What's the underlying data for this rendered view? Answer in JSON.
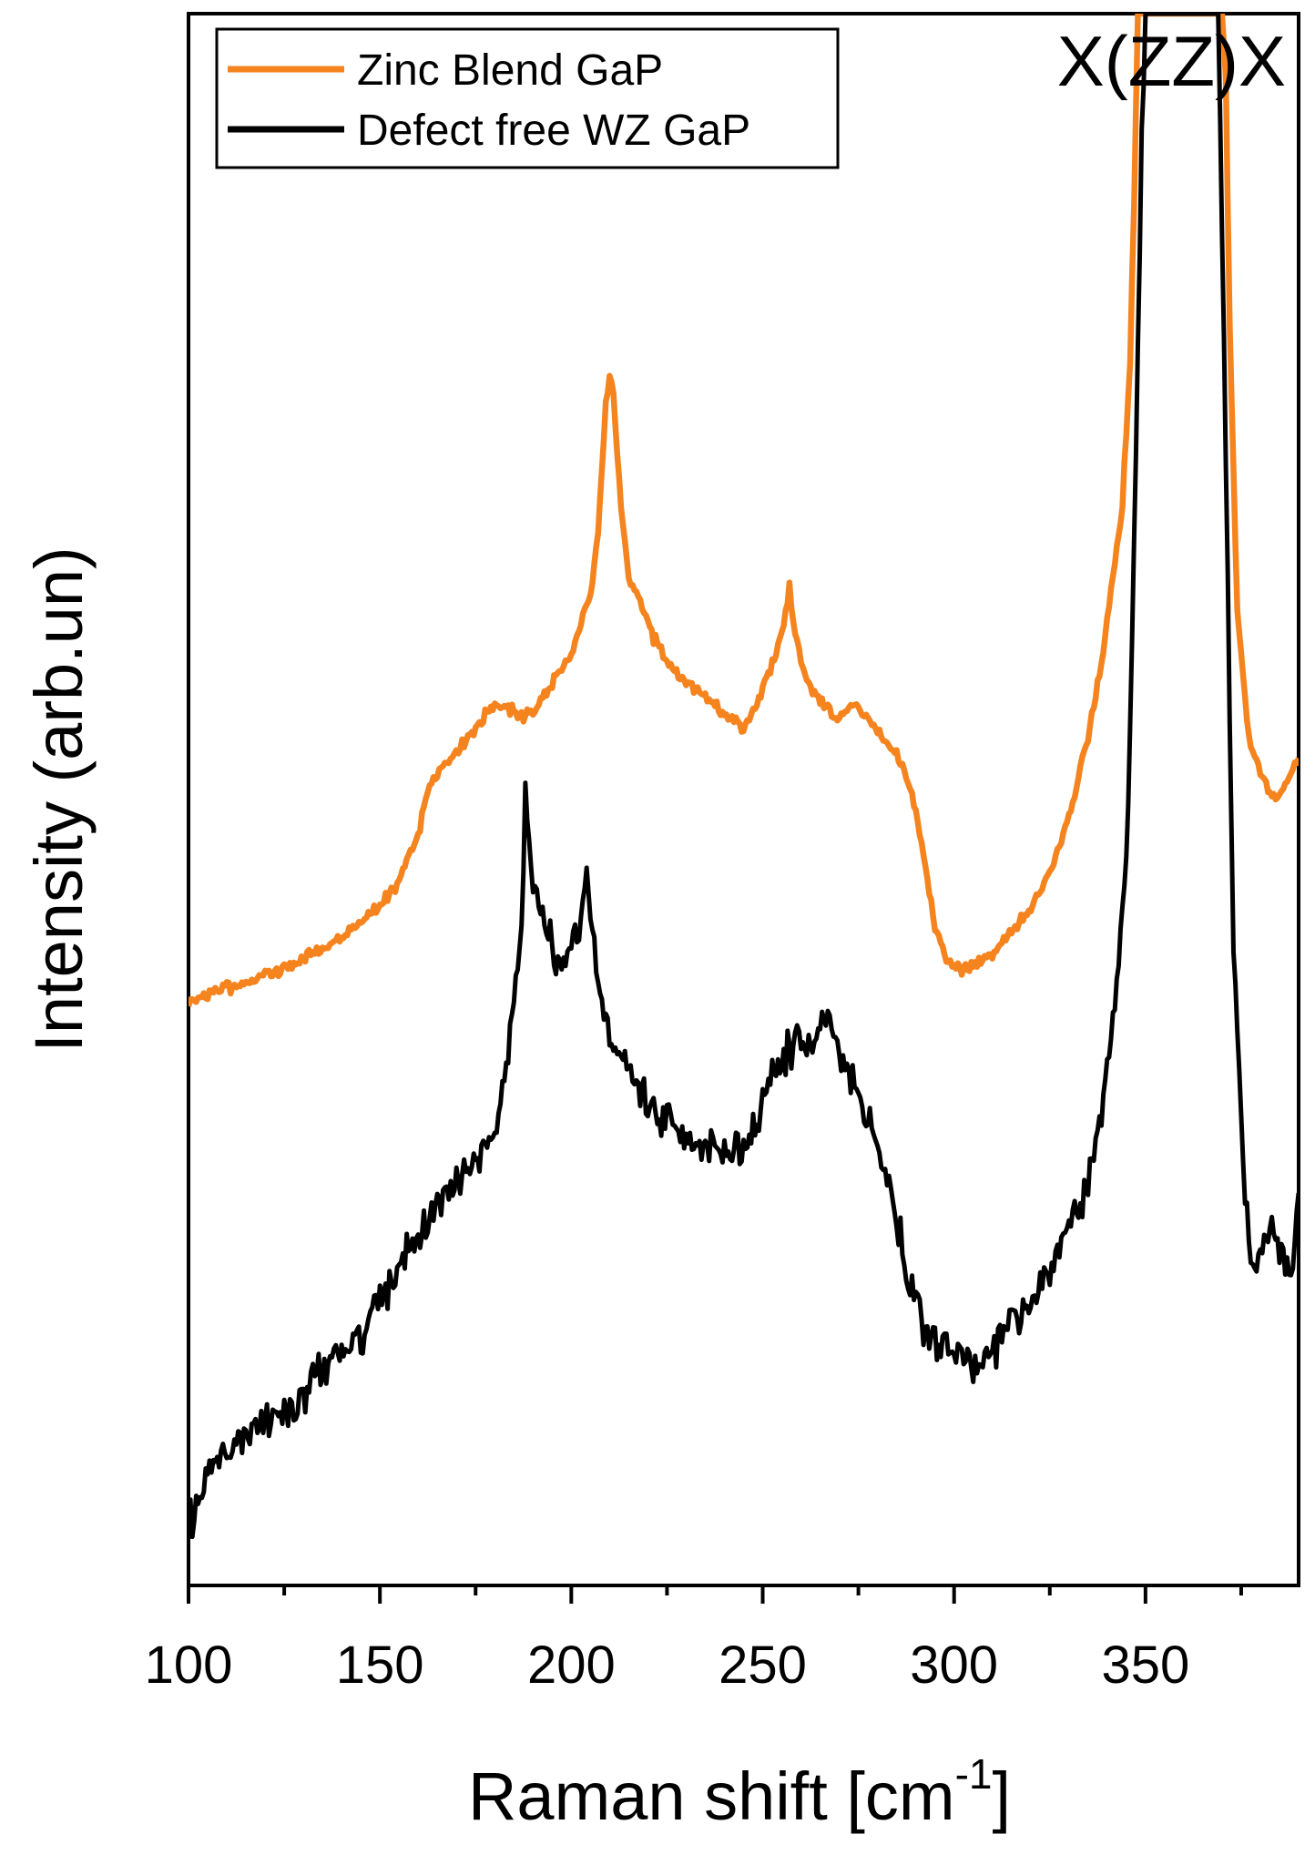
{
  "chart_data": {
    "type": "line",
    "title": "",
    "xlabel": "Raman shift [cm",
    "xlabel_sup": "-1",
    "xlabel_end": "]",
    "ylabel": "Intensity (arb.un)",
    "xlim": [
      100,
      390
    ],
    "ylim": [
      0,
      100
    ],
    "y_ticks_shown": false,
    "grid": false,
    "x_ticks": [
      "100",
      "150",
      "200",
      "250",
      "300",
      "350"
    ],
    "annotation": "X(ZZ)X",
    "legend": {
      "position": "top-left"
    },
    "series": [
      {
        "name": "Zinc Blend GaP",
        "color": "#f5841f",
        "points": [
          [
            100,
            37.2
          ],
          [
            110,
            38.0
          ],
          [
            120,
            38.8
          ],
          [
            130,
            39.8
          ],
          [
            140,
            41.2
          ],
          [
            150,
            43.2
          ],
          [
            155,
            44.8
          ],
          [
            160,
            47.8
          ],
          [
            163,
            51.0
          ],
          [
            167,
            52.3
          ],
          [
            172,
            53.6
          ],
          [
            177,
            55.2
          ],
          [
            180,
            56.0
          ],
          [
            184,
            55.7
          ],
          [
            188,
            55.2
          ],
          [
            192,
            56.2
          ],
          [
            196,
            57.8
          ],
          [
            200,
            59.0
          ],
          [
            203,
            61.5
          ],
          [
            205,
            63.2
          ],
          [
            207,
            67.0
          ],
          [
            209,
            75.0
          ],
          [
            210,
            77.0
          ],
          [
            211,
            75.5
          ],
          [
            213,
            68.5
          ],
          [
            215,
            64.0
          ],
          [
            218,
            62.5
          ],
          [
            221,
            60.5
          ],
          [
            225,
            58.8
          ],
          [
            230,
            57.5
          ],
          [
            235,
            56.6
          ],
          [
            240,
            55.5
          ],
          [
            245,
            54.5
          ],
          [
            248,
            55.8
          ],
          [
            252,
            58.2
          ],
          [
            255,
            60.5
          ],
          [
            257,
            63.5
          ],
          [
            258,
            61.0
          ],
          [
            261,
            58.0
          ],
          [
            264,
            56.5
          ],
          [
            267,
            55.8
          ],
          [
            270,
            55.2
          ],
          [
            274,
            56.3
          ],
          [
            277,
            55.2
          ],
          [
            281,
            54.0
          ],
          [
            285,
            52.8
          ],
          [
            289,
            50.5
          ],
          [
            292,
            46.5
          ],
          [
            295,
            42.0
          ],
          [
            298,
            39.8
          ],
          [
            302,
            39.2
          ],
          [
            306,
            39.5
          ],
          [
            310,
            40.2
          ],
          [
            315,
            41.5
          ],
          [
            320,
            43.0
          ],
          [
            325,
            45.2
          ],
          [
            330,
            49.0
          ],
          [
            335,
            54.0
          ],
          [
            339,
            59.5
          ],
          [
            342,
            65.0
          ],
          [
            344,
            69.0
          ],
          [
            346,
            78.0
          ],
          [
            347,
            88.0
          ],
          [
            348,
            100.0
          ],
          [
            370,
            100.0
          ],
          [
            371,
            96.0
          ],
          [
            372,
            80.0
          ],
          [
            374,
            62.0
          ],
          [
            377,
            54.0
          ],
          [
            380,
            51.5
          ],
          [
            383,
            50.2
          ],
          [
            386,
            50.5
          ],
          [
            388,
            51.8
          ],
          [
            390,
            52.5
          ]
        ]
      },
      {
        "name": "Defect free WZ GaP",
        "color": "#000000",
        "points": [
          [
            100,
            3.5
          ],
          [
            105,
            7.5
          ],
          [
            110,
            8.8
          ],
          [
            115,
            9.8
          ],
          [
            120,
            10.6
          ],
          [
            125,
            11.0
          ],
          [
            130,
            11.8
          ],
          [
            135,
            13.8
          ],
          [
            140,
            14.8
          ],
          [
            145,
            16.0
          ],
          [
            150,
            18.2
          ],
          [
            155,
            20.2
          ],
          [
            160,
            22.3
          ],
          [
            165,
            24.2
          ],
          [
            170,
            25.6
          ],
          [
            175,
            27.0
          ],
          [
            179,
            28.5
          ],
          [
            182,
            31.5
          ],
          [
            185,
            36.5
          ],
          [
            187,
            42.5
          ],
          [
            188,
            51.0
          ],
          [
            189,
            46.5
          ],
          [
            191,
            43.5
          ],
          [
            194,
            41.5
          ],
          [
            197,
            39.5
          ],
          [
            200,
            40.5
          ],
          [
            203,
            42.5
          ],
          [
            204,
            46.0
          ],
          [
            205,
            43.0
          ],
          [
            207,
            38.0
          ],
          [
            210,
            35.0
          ],
          [
            213,
            33.8
          ],
          [
            217,
            32.0
          ],
          [
            220,
            30.6
          ],
          [
            225,
            29.6
          ],
          [
            230,
            28.6
          ],
          [
            235,
            28.0
          ],
          [
            240,
            27.5
          ],
          [
            245,
            27.8
          ],
          [
            248,
            29.5
          ],
          [
            252,
            32.0
          ],
          [
            256,
            34.0
          ],
          [
            260,
            34.5
          ],
          [
            263,
            34.0
          ],
          [
            266,
            36.0
          ],
          [
            268,
            35.0
          ],
          [
            271,
            33.5
          ],
          [
            275,
            31.0
          ],
          [
            280,
            28.0
          ],
          [
            284,
            24.5
          ],
          [
            288,
            19.5
          ],
          [
            292,
            16.5
          ],
          [
            296,
            15.0
          ],
          [
            300,
            14.5
          ],
          [
            305,
            14.2
          ],
          [
            310,
            15.0
          ],
          [
            315,
            16.5
          ],
          [
            320,
            18.0
          ],
          [
            325,
            20.0
          ],
          [
            330,
            22.5
          ],
          [
            335,
            25.5
          ],
          [
            339,
            31.0
          ],
          [
            342,
            37.5
          ],
          [
            345,
            46.0
          ],
          [
            347,
            65.0
          ],
          [
            349,
            92.0
          ],
          [
            350,
            100.0
          ],
          [
            369,
            100.0
          ],
          [
            371,
            72.0
          ],
          [
            373,
            40.0
          ],
          [
            376,
            24.5
          ],
          [
            378,
            19.5
          ],
          [
            381,
            22.0
          ],
          [
            383,
            23.0
          ],
          [
            386,
            21.0
          ],
          [
            388,
            20.0
          ],
          [
            390,
            25.5
          ]
        ]
      }
    ]
  }
}
